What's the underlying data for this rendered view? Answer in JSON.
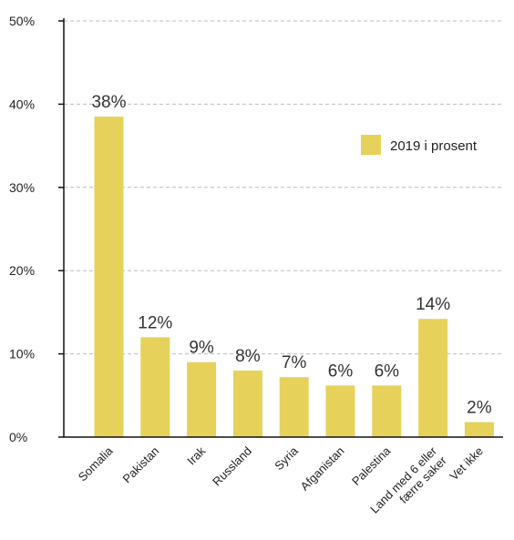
{
  "chart_data": {
    "type": "bar",
    "categories": [
      "Somalia",
      "Pakistan",
      "Irak",
      "Russland",
      "Syria",
      "Afganistan",
      "Palestina",
      [
        "Land med 6 eller",
        "færre saker"
      ],
      "Vet ikke"
    ],
    "series": [
      {
        "name": "2019 i prosent",
        "values": [
          38.5,
          12,
          9,
          8,
          7.2,
          6.2,
          6.2,
          14.2,
          1.8
        ],
        "labels": [
          "38%",
          "12%",
          "9%",
          "8%",
          "7%",
          "6%",
          "6%",
          "14%",
          "2%"
        ],
        "color": "#e6d15b"
      }
    ],
    "ylim": [
      0,
      50
    ],
    "yticks": [
      0,
      10,
      20,
      30,
      40,
      50
    ],
    "ytick_labels": [
      "0%",
      "10%",
      "20%",
      "30%",
      "40%",
      "50%"
    ],
    "grid": true,
    "legend": "right",
    "title": "",
    "xlabel": "",
    "ylabel": ""
  }
}
